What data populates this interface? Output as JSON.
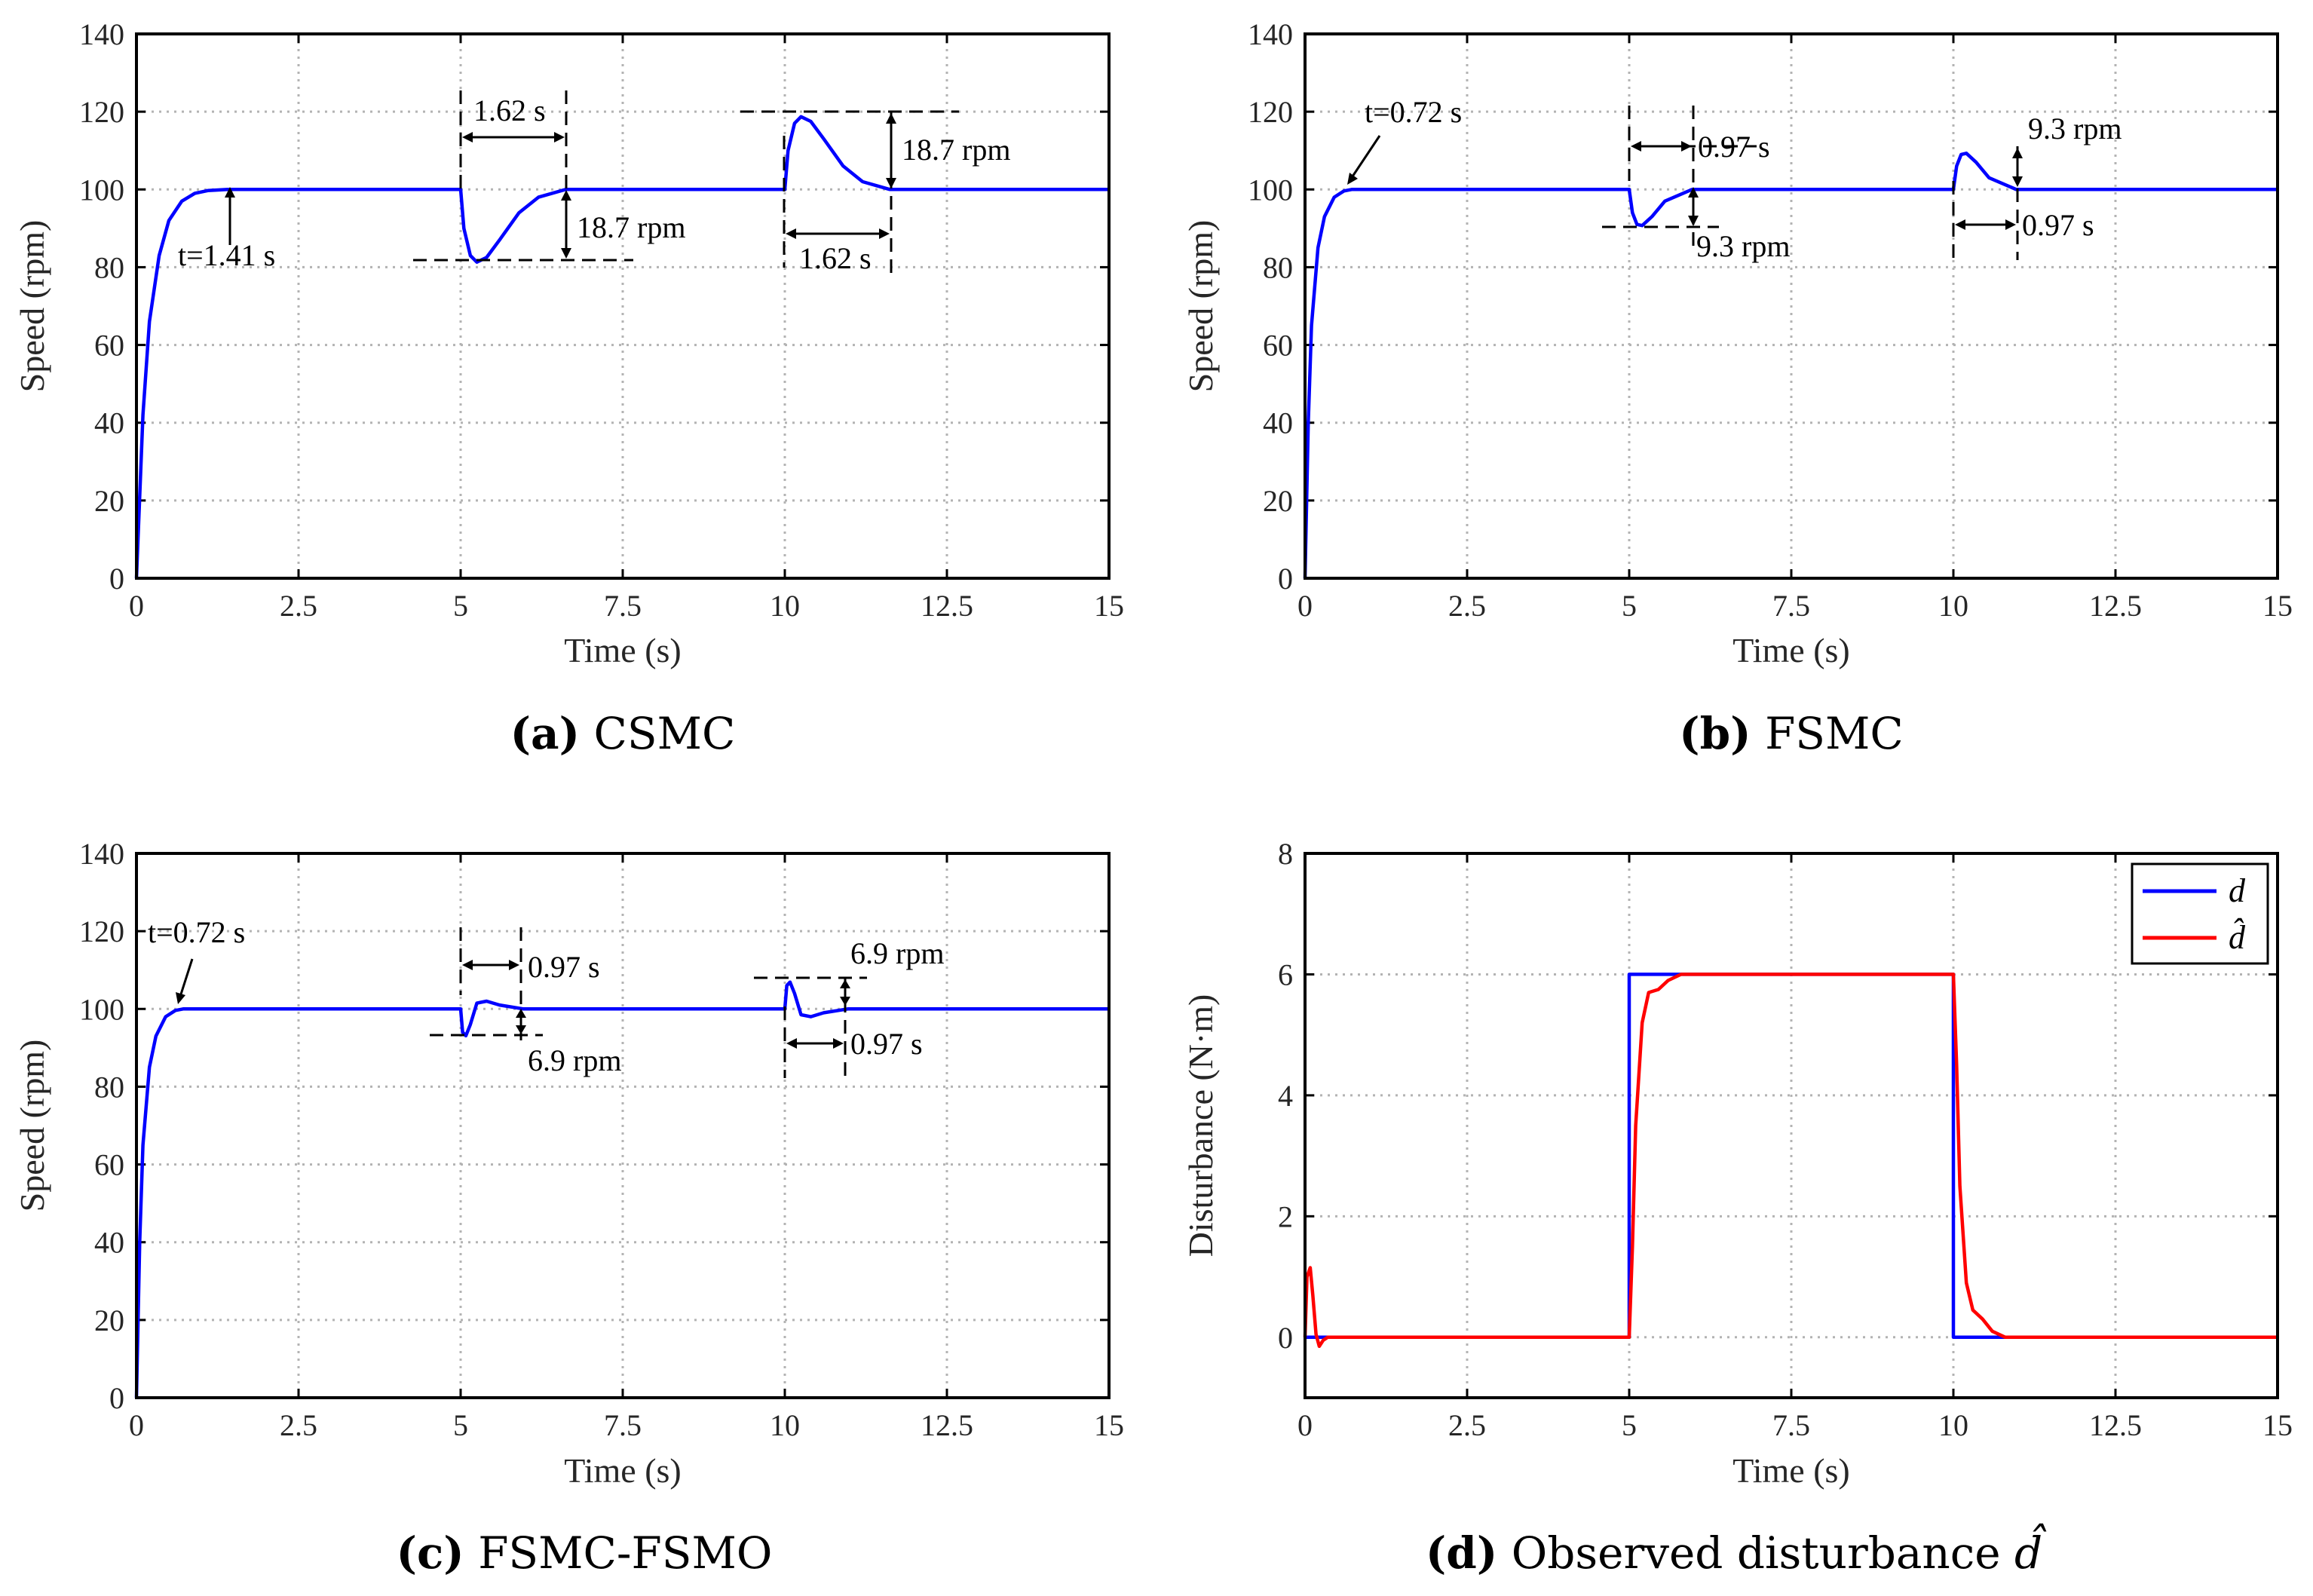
{
  "chart_data": [
    {
      "id": "a",
      "type": "line",
      "caption": {
        "letter": "(a)",
        "text": "CSMC"
      },
      "xlabel": "Time (s)",
      "ylabel": "Speed  (rpm)",
      "xlim": [
        0,
        15
      ],
      "ylim": [
        0,
        140
      ],
      "xticks": [
        0,
        2.5,
        5,
        7.5,
        10,
        12.5,
        15
      ],
      "xtick_labels": [
        "0",
        "2.5",
        "5",
        "7.5",
        "10",
        "12.5",
        "15"
      ],
      "yticks": [
        0,
        20,
        40,
        60,
        80,
        100,
        120,
        140
      ],
      "ytick_labels": [
        "0",
        "20",
        "40",
        "60",
        "80",
        "100",
        "120",
        "140"
      ],
      "grid": true,
      "series": [
        {
          "name": "speed",
          "color": "#0000ff",
          "x": [
            0,
            0.1,
            0.2,
            0.35,
            0.5,
            0.7,
            0.9,
            1.1,
            1.41,
            5.0,
            5.05,
            5.15,
            5.25,
            5.4,
            5.6,
            5.9,
            6.2,
            6.62,
            7.0,
            10.0,
            10.05,
            10.15,
            10.25,
            10.4,
            10.6,
            10.9,
            11.2,
            11.62,
            12.0,
            15
          ],
          "y": [
            0,
            42,
            66,
            83,
            92,
            97,
            99,
            99.7,
            100,
            100,
            90,
            83,
            81.3,
            82.5,
            87,
            94,
            98,
            100,
            100,
            100,
            110,
            117,
            118.7,
            117.5,
            113,
            106,
            102,
            100,
            100,
            100
          ]
        }
      ],
      "annotations": [
        {
          "text": "t=1.41 s"
        },
        {
          "text": "1.62 s"
        },
        {
          "text": "18.7 rpm"
        },
        {
          "text": "18.7 rpm"
        },
        {
          "text": "1.62 s"
        }
      ]
    },
    {
      "id": "b",
      "type": "line",
      "caption": {
        "letter": "(b)",
        "text": "FSMC"
      },
      "xlabel": "Time (s)",
      "ylabel": "Speed  (rpm)",
      "xlim": [
        0,
        15
      ],
      "ylim": [
        0,
        140
      ],
      "xticks": [
        0,
        2.5,
        5,
        7.5,
        10,
        12.5,
        15
      ],
      "xtick_labels": [
        "0",
        "2.5",
        "5",
        "7.5",
        "10",
        "12.5",
        "15"
      ],
      "yticks": [
        0,
        20,
        40,
        60,
        80,
        100,
        120,
        140
      ],
      "ytick_labels": [
        "0",
        "20",
        "40",
        "60",
        "80",
        "100",
        "120",
        "140"
      ],
      "grid": true,
      "series": [
        {
          "name": "speed",
          "color": "#0000ff",
          "x": [
            0,
            0.05,
            0.1,
            0.2,
            0.3,
            0.45,
            0.6,
            0.72,
            5.0,
            5.05,
            5.12,
            5.2,
            5.35,
            5.55,
            5.97,
            6.2,
            10.0,
            10.05,
            10.12,
            10.2,
            10.35,
            10.55,
            10.97,
            11.2,
            15
          ],
          "y": [
            0,
            40,
            65,
            85,
            93,
            98,
            99.6,
            100,
            100,
            94,
            91,
            90.7,
            93,
            97,
            100,
            100,
            100,
            106,
            109,
            109.3,
            107,
            103,
            100,
            100,
            100
          ]
        }
      ],
      "annotations": [
        {
          "text": "t=0.72 s"
        },
        {
          "text": "0.97 s"
        },
        {
          "text": "9.3 rpm"
        },
        {
          "text": "9.3 rpm"
        },
        {
          "text": "0.97 s"
        }
      ]
    },
    {
      "id": "c",
      "type": "line",
      "caption": {
        "letter": "(c)",
        "text": "FSMC-FSMO"
      },
      "xlabel": "Time (s)",
      "ylabel": "Speed  (rpm)",
      "xlim": [
        0,
        15
      ],
      "ylim": [
        0,
        140
      ],
      "xticks": [
        0,
        2.5,
        5,
        7.5,
        10,
        12.5,
        15
      ],
      "xtick_labels": [
        "0",
        "2.5",
        "5",
        "7.5",
        "10",
        "12.5",
        "15"
      ],
      "yticks": [
        0,
        20,
        40,
        60,
        80,
        100,
        120,
        140
      ],
      "ytick_labels": [
        "0",
        "20",
        "40",
        "60",
        "80",
        "100",
        "120",
        "140"
      ],
      "grid": true,
      "series": [
        {
          "name": "speed",
          "color": "#0000ff",
          "x": [
            0,
            0.05,
            0.1,
            0.2,
            0.3,
            0.45,
            0.6,
            0.72,
            5.0,
            5.03,
            5.08,
            5.15,
            5.25,
            5.4,
            5.6,
            5.97,
            6.2,
            10.0,
            10.03,
            10.08,
            10.15,
            10.25,
            10.4,
            10.6,
            10.97,
            11.2,
            15
          ],
          "y": [
            0,
            40,
            65,
            85,
            93,
            98,
            99.6,
            100,
            100,
            94,
            93.1,
            96,
            101.5,
            102,
            101,
            100,
            100,
            100,
            106,
            106.9,
            104,
            98.5,
            98,
            99,
            100,
            100,
            100
          ]
        }
      ],
      "annotations": [
        {
          "text": "t=0.72 s"
        },
        {
          "text": "0.97 s"
        },
        {
          "text": "6.9 rpm"
        },
        {
          "text": "6.9 rpm"
        },
        {
          "text": "0.97 s"
        }
      ]
    },
    {
      "id": "d",
      "type": "line",
      "caption": {
        "letter": "(d)",
        "text": "Observed disturbance "
      },
      "xlabel": "Time (s)",
      "ylabel": "Disturbance (N·m)",
      "xlim": [
        0,
        15
      ],
      "ylim": [
        -1,
        8
      ],
      "xticks": [
        0,
        2.5,
        5,
        7.5,
        10,
        12.5,
        15
      ],
      "xtick_labels": [
        "0",
        "2.5",
        "5",
        "7.5",
        "10",
        "12.5",
        "15"
      ],
      "yticks": [
        0,
        2,
        4,
        6,
        8
      ],
      "ytick_labels": [
        "0",
        "2",
        "4",
        "6",
        "8"
      ],
      "grid": true,
      "legend_position": "top-right",
      "series": [
        {
          "name": "d",
          "color": "#0000ff",
          "x": [
            0,
            5.0,
            5.0,
            10.0,
            10.0,
            15
          ],
          "y": [
            0,
            0,
            6,
            6,
            0,
            0
          ]
        },
        {
          "name": "d-hat",
          "color": "#ff0000",
          "x": [
            0,
            0.03,
            0.08,
            0.12,
            0.17,
            0.22,
            0.28,
            0.35,
            0.45,
            5.0,
            5.05,
            5.1,
            5.2,
            5.3,
            5.45,
            5.6,
            5.8,
            6.0,
            10.0,
            10.05,
            10.1,
            10.2,
            10.3,
            10.45,
            10.6,
            10.8,
            11.0,
            15
          ],
          "y": [
            0,
            1.0,
            1.15,
            0.7,
            0.05,
            -0.15,
            -0.05,
            0,
            0,
            0,
            1.5,
            3.5,
            5.2,
            5.7,
            5.75,
            5.9,
            6.0,
            6.0,
            6.0,
            4.5,
            2.5,
            0.9,
            0.45,
            0.3,
            0.1,
            0,
            0,
            0
          ]
        }
      ],
      "legend": [
        {
          "label": "d",
          "color": "#0000ff"
        },
        {
          "label": "d̂",
          "color": "#ff0000"
        }
      ]
    }
  ]
}
